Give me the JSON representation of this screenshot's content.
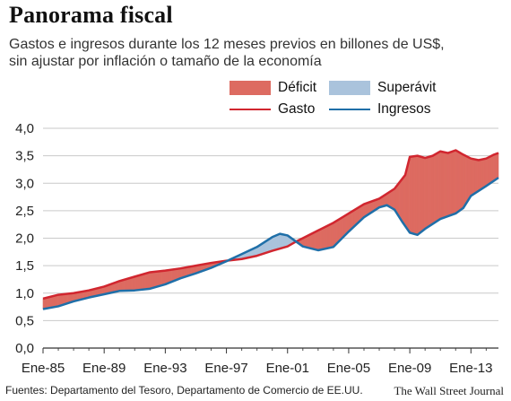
{
  "header": {
    "title": "Panorama fiscal",
    "subtitle_line1": "Gastos e ingresos durante los 12 meses previos en billones de US$,",
    "subtitle_line2": "sin ajustar por inflación o tamaño de la economía"
  },
  "legend": {
    "deficit": "Déficit",
    "superavit": "Superávit",
    "gasto": "Gasto",
    "ingresos": "Ingresos"
  },
  "colors": {
    "deficit_fill": "#dd6b61",
    "superavit_fill": "#aac3dc",
    "gasto_line": "#d1262f",
    "ingresos_line": "#1f6fa8",
    "grid": "#c9c9c9"
  },
  "footer": {
    "source": "Fuentes: Departamento del Tesoro, Departamento de Comercio de EE.UU.",
    "credit": "The Wall Street Journal"
  },
  "chart_data": {
    "type": "area",
    "xlim": [
      1985.0,
      2014.8
    ],
    "ylim": [
      0,
      4
    ],
    "yticks": [
      0.0,
      0.5,
      1.0,
      1.5,
      2.0,
      2.5,
      3.0,
      3.5,
      4.0
    ],
    "ytick_labels": [
      "0,0",
      "0,5",
      "1,0",
      "1,5",
      "2,0",
      "2,5",
      "3,0",
      "3,5",
      "4,0"
    ],
    "xticks": [
      1985,
      1989,
      1993,
      1997,
      2001,
      2005,
      2009,
      2013
    ],
    "xtick_labels": [
      "Ene-85",
      "Ene-89",
      "Ene-93",
      "Ene-97",
      "Ene-01",
      "Ene-05",
      "Ene-09",
      "Ene-13"
    ],
    "grid": true,
    "legend_position": "top-right",
    "series": [
      {
        "name": "Gasto",
        "x": [
          1985.0,
          1986.0,
          1987.0,
          1988.0,
          1989.0,
          1990.0,
          1991.0,
          1992.0,
          1993.0,
          1994.0,
          1995.0,
          1996.0,
          1997.0,
          1998.0,
          1999.0,
          2000.0,
          2001.0,
          2001.5,
          2002.0,
          2003.0,
          2004.0,
          2005.0,
          2006.0,
          2007.0,
          2008.0,
          2008.7,
          2009.0,
          2009.5,
          2010.0,
          2010.5,
          2011.0,
          2011.5,
          2012.0,
          2012.5,
          2013.0,
          2013.5,
          2014.0,
          2014.5,
          2014.8
        ],
        "values": [
          0.9,
          0.97,
          1.0,
          1.05,
          1.12,
          1.22,
          1.3,
          1.38,
          1.41,
          1.45,
          1.5,
          1.55,
          1.59,
          1.62,
          1.68,
          1.77,
          1.85,
          1.93,
          2.0,
          2.14,
          2.28,
          2.45,
          2.62,
          2.72,
          2.9,
          3.15,
          3.48,
          3.5,
          3.46,
          3.5,
          3.58,
          3.55,
          3.6,
          3.52,
          3.45,
          3.42,
          3.45,
          3.52,
          3.55
        ]
      },
      {
        "name": "Ingresos",
        "x": [
          1985.0,
          1986.0,
          1987.0,
          1988.0,
          1989.0,
          1990.0,
          1991.0,
          1992.0,
          1993.0,
          1994.0,
          1995.0,
          1996.0,
          1997.0,
          1998.0,
          1999.0,
          2000.0,
          2000.5,
          2001.0,
          2001.5,
          2002.0,
          2003.0,
          2004.0,
          2005.0,
          2006.0,
          2007.0,
          2007.5,
          2008.0,
          2008.5,
          2009.0,
          2009.5,
          2010.0,
          2011.0,
          2012.0,
          2012.5,
          2013.0,
          2014.0,
          2014.8
        ],
        "values": [
          0.71,
          0.76,
          0.85,
          0.92,
          0.98,
          1.04,
          1.05,
          1.08,
          1.16,
          1.27,
          1.36,
          1.46,
          1.58,
          1.71,
          1.84,
          2.02,
          2.08,
          2.05,
          1.95,
          1.85,
          1.78,
          1.84,
          2.12,
          2.38,
          2.56,
          2.6,
          2.52,
          2.3,
          2.1,
          2.06,
          2.17,
          2.35,
          2.45,
          2.55,
          2.77,
          2.95,
          3.1
        ]
      }
    ]
  }
}
